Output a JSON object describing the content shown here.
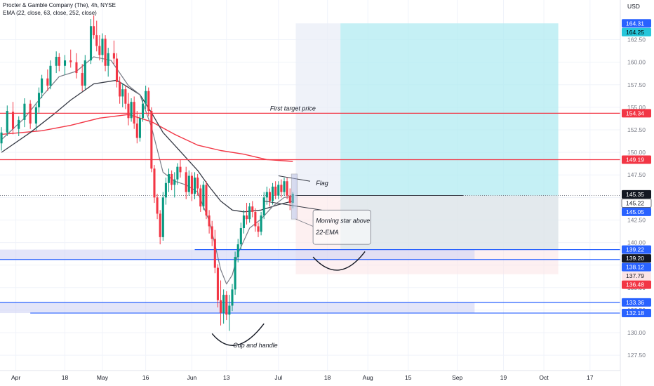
{
  "header": {
    "title": "Procter & Gamble Company (The), 4h, NYSE",
    "indicator": "EMA (22, close, 63, close, 252, close)"
  },
  "chart_data": {
    "type": "candlestick",
    "currency": "USD",
    "ylim": [
      125.8,
      166.9
    ],
    "y_ticks": [
      127.5,
      130.0,
      132.5,
      135.0,
      137.5,
      140.0,
      142.5,
      145.0,
      147.5,
      150.0,
      152.5,
      155.0,
      157.5,
      160.0,
      162.5
    ],
    "x_ticks": [
      {
        "label": "Apr",
        "day": 1
      },
      {
        "label": "18",
        "day": 18
      },
      {
        "label": "May",
        "day": 31
      },
      {
        "label": "16",
        "day": 46
      },
      {
        "label": "Jun",
        "day": 62
      },
      {
        "label": "13",
        "day": 74
      },
      {
        "label": "Jul",
        "day": 92
      },
      {
        "label": "18",
        "day": 109
      },
      {
        "label": "Aug",
        "day": 123
      },
      {
        "label": "15",
        "day": 137
      },
      {
        "label": "Sep",
        "day": 154
      },
      {
        "label": "19",
        "day": 170
      },
      {
        "label": "Oct",
        "day": 184
      },
      {
        "label": "17",
        "day": 200
      }
    ],
    "xlim": [
      -4.5,
      210.5
    ],
    "candles": [
      {
        "d": -4,
        "o": 151.0,
        "h": 152.8,
        "l": 150.2,
        "c": 152.2
      },
      {
        "d": -2,
        "o": 152.2,
        "h": 155.2,
        "l": 151.8,
        "c": 154.6
      },
      {
        "d": 0,
        "o": 154.5,
        "h": 155.6,
        "l": 152.0,
        "c": 152.6
      },
      {
        "d": 2,
        "o": 152.6,
        "h": 154.0,
        "l": 151.8,
        "c": 153.6
      },
      {
        "d": 4,
        "o": 153.6,
        "h": 156.0,
        "l": 152.8,
        "c": 155.4
      },
      {
        "d": 6,
        "o": 155.4,
        "h": 155.8,
        "l": 152.6,
        "c": 153.2
      },
      {
        "d": 8,
        "o": 153.2,
        "h": 155.5,
        "l": 152.4,
        "c": 155.0
      },
      {
        "d": 9,
        "o": 155.0,
        "h": 157.2,
        "l": 154.4,
        "c": 156.6
      },
      {
        "d": 10,
        "o": 156.6,
        "h": 158.6,
        "l": 156.0,
        "c": 158.2
      },
      {
        "d": 12,
        "o": 158.2,
        "h": 159.2,
        "l": 156.8,
        "c": 157.4
      },
      {
        "d": 13,
        "o": 157.4,
        "h": 160.2,
        "l": 157.0,
        "c": 159.6
      },
      {
        "d": 15,
        "o": 159.6,
        "h": 161.2,
        "l": 158.8,
        "c": 160.6
      },
      {
        "d": 16,
        "o": 160.6,
        "h": 161.0,
        "l": 159.0,
        "c": 159.6
      },
      {
        "d": 18,
        "o": 159.6,
        "h": 160.8,
        "l": 158.6,
        "c": 160.2
      },
      {
        "d": 20,
        "o": 160.2,
        "h": 161.4,
        "l": 159.4,
        "c": 160.0
      },
      {
        "d": 22,
        "o": 160.0,
        "h": 161.0,
        "l": 158.2,
        "c": 158.8
      },
      {
        "d": 24,
        "o": 158.8,
        "h": 159.8,
        "l": 156.8,
        "c": 157.4
      },
      {
        "d": 25,
        "o": 157.4,
        "h": 160.8,
        "l": 157.0,
        "c": 160.2
      },
      {
        "d": 27,
        "o": 160.2,
        "h": 164.8,
        "l": 159.8,
        "c": 164.0
      },
      {
        "d": 28,
        "o": 164.0,
        "h": 165.2,
        "l": 162.6,
        "c": 163.0
      },
      {
        "d": 29,
        "o": 163.0,
        "h": 164.6,
        "l": 161.2,
        "c": 161.8
      },
      {
        "d": 30,
        "o": 161.8,
        "h": 163.0,
        "l": 160.2,
        "c": 160.8
      },
      {
        "d": 31,
        "o": 160.8,
        "h": 163.2,
        "l": 160.0,
        "c": 162.6
      },
      {
        "d": 32,
        "o": 162.6,
        "h": 163.0,
        "l": 159.0,
        "c": 159.6
      },
      {
        "d": 33,
        "o": 159.6,
        "h": 161.6,
        "l": 158.4,
        "c": 161.0
      },
      {
        "d": 35,
        "o": 161.0,
        "h": 162.4,
        "l": 159.8,
        "c": 160.4
      },
      {
        "d": 36,
        "o": 160.4,
        "h": 161.0,
        "l": 157.2,
        "c": 157.8
      },
      {
        "d": 37,
        "o": 157.8,
        "h": 158.4,
        "l": 155.4,
        "c": 156.2
      },
      {
        "d": 38,
        "o": 156.2,
        "h": 157.6,
        "l": 155.0,
        "c": 157.0
      },
      {
        "d": 39,
        "o": 157.0,
        "h": 157.4,
        "l": 154.8,
        "c": 155.4
      },
      {
        "d": 40,
        "o": 155.4,
        "h": 156.6,
        "l": 153.0,
        "c": 153.8
      },
      {
        "d": 41,
        "o": 153.8,
        "h": 156.0,
        "l": 153.4,
        "c": 155.6
      },
      {
        "d": 42,
        "o": 155.6,
        "h": 156.2,
        "l": 152.6,
        "c": 153.2
      },
      {
        "d": 43,
        "o": 153.2,
        "h": 154.6,
        "l": 151.0,
        "c": 151.6
      },
      {
        "d": 44,
        "o": 151.6,
        "h": 154.2,
        "l": 151.2,
        "c": 153.8
      },
      {
        "d": 45,
        "o": 153.8,
        "h": 156.0,
        "l": 153.4,
        "c": 155.4
      },
      {
        "d": 46,
        "o": 155.4,
        "h": 157.4,
        "l": 154.8,
        "c": 156.8
      },
      {
        "d": 47,
        "o": 156.8,
        "h": 157.2,
        "l": 154.0,
        "c": 154.6
      },
      {
        "d": 48,
        "o": 154.6,
        "h": 155.0,
        "l": 147.8,
        "c": 148.2
      },
      {
        "d": 49,
        "o": 148.2,
        "h": 148.6,
        "l": 144.4,
        "c": 145.0
      },
      {
        "d": 50,
        "o": 145.0,
        "h": 145.4,
        "l": 142.6,
        "c": 143.2
      },
      {
        "d": 51,
        "o": 143.2,
        "h": 143.6,
        "l": 139.8,
        "c": 140.6
      },
      {
        "d": 52,
        "o": 140.6,
        "h": 145.6,
        "l": 140.2,
        "c": 145.0
      },
      {
        "d": 53,
        "o": 145.0,
        "h": 147.2,
        "l": 144.2,
        "c": 146.6
      },
      {
        "d": 54,
        "o": 146.6,
        "h": 148.2,
        "l": 145.6,
        "c": 147.6
      },
      {
        "d": 55,
        "o": 147.6,
        "h": 148.0,
        "l": 145.8,
        "c": 146.4
      },
      {
        "d": 56,
        "o": 146.4,
        "h": 147.8,
        "l": 145.0,
        "c": 147.0
      },
      {
        "d": 57,
        "o": 147.0,
        "h": 148.8,
        "l": 146.4,
        "c": 148.4
      },
      {
        "d": 58,
        "o": 148.4,
        "h": 149.2,
        "l": 147.2,
        "c": 147.8
      },
      {
        "d": 60,
        "o": 147.8,
        "h": 148.4,
        "l": 144.8,
        "c": 145.6
      },
      {
        "d": 61,
        "o": 145.6,
        "h": 148.0,
        "l": 145.2,
        "c": 147.4
      },
      {
        "d": 62,
        "o": 147.4,
        "h": 147.8,
        "l": 144.6,
        "c": 145.4
      },
      {
        "d": 63,
        "o": 145.4,
        "h": 147.8,
        "l": 144.8,
        "c": 147.2
      },
      {
        "d": 64,
        "o": 147.2,
        "h": 147.6,
        "l": 145.2,
        "c": 146.0
      },
      {
        "d": 65,
        "o": 146.0,
        "h": 146.4,
        "l": 143.4,
        "c": 144.0
      },
      {
        "d": 66,
        "o": 144.0,
        "h": 146.8,
        "l": 143.6,
        "c": 146.4
      },
      {
        "d": 67,
        "o": 146.4,
        "h": 146.8,
        "l": 142.6,
        "c": 143.0
      },
      {
        "d": 68,
        "o": 143.0,
        "h": 143.6,
        "l": 141.0,
        "c": 141.8
      },
      {
        "d": 69,
        "o": 141.8,
        "h": 142.4,
        "l": 139.6,
        "c": 140.4
      },
      {
        "d": 70,
        "o": 140.4,
        "h": 141.4,
        "l": 136.6,
        "c": 137.2
      },
      {
        "d": 71,
        "o": 137.2,
        "h": 137.6,
        "l": 132.8,
        "c": 133.6
      },
      {
        "d": 72,
        "o": 133.6,
        "h": 135.8,
        "l": 130.8,
        "c": 132.2
      },
      {
        "d": 73,
        "o": 132.2,
        "h": 134.8,
        "l": 131.0,
        "c": 134.2
      },
      {
        "d": 74,
        "o": 134.2,
        "h": 134.6,
        "l": 131.4,
        "c": 132.0
      },
      {
        "d": 75,
        "o": 132.0,
        "h": 134.2,
        "l": 130.2,
        "c": 133.0
      },
      {
        "d": 76,
        "o": 133.0,
        "h": 135.4,
        "l": 132.4,
        "c": 134.8
      },
      {
        "d": 77,
        "o": 134.8,
        "h": 139.0,
        "l": 134.2,
        "c": 138.4
      },
      {
        "d": 78,
        "o": 138.4,
        "h": 140.4,
        "l": 137.8,
        "c": 139.8
      },
      {
        "d": 79,
        "o": 139.8,
        "h": 142.2,
        "l": 139.2,
        "c": 141.6
      },
      {
        "d": 80,
        "o": 141.6,
        "h": 143.6,
        "l": 141.0,
        "c": 143.0
      },
      {
        "d": 81,
        "o": 143.0,
        "h": 144.4,
        "l": 142.0,
        "c": 142.6
      },
      {
        "d": 82,
        "o": 142.6,
        "h": 144.4,
        "l": 142.2,
        "c": 144.0
      },
      {
        "d": 83,
        "o": 144.0,
        "h": 144.6,
        "l": 142.8,
        "c": 143.4
      },
      {
        "d": 84,
        "o": 143.4,
        "h": 143.8,
        "l": 141.2,
        "c": 141.8
      },
      {
        "d": 85,
        "o": 141.8,
        "h": 142.2,
        "l": 140.6,
        "c": 141.2
      },
      {
        "d": 86,
        "o": 141.2,
        "h": 143.4,
        "l": 140.8,
        "c": 143.0
      },
      {
        "d": 87,
        "o": 143.0,
        "h": 145.6,
        "l": 142.6,
        "c": 145.0
      },
      {
        "d": 88,
        "o": 145.0,
        "h": 146.2,
        "l": 144.2,
        "c": 145.6
      },
      {
        "d": 89,
        "o": 145.6,
        "h": 146.0,
        "l": 144.0,
        "c": 144.6
      },
      {
        "d": 90,
        "o": 144.6,
        "h": 146.6,
        "l": 144.2,
        "c": 146.2
      },
      {
        "d": 91,
        "o": 146.2,
        "h": 146.8,
        "l": 144.8,
        "c": 145.2
      },
      {
        "d": 92,
        "o": 145.2,
        "h": 146.8,
        "l": 144.8,
        "c": 146.4
      },
      {
        "d": 93,
        "o": 146.4,
        "h": 147.0,
        "l": 145.0,
        "c": 145.6
      },
      {
        "d": 94,
        "o": 145.6,
        "h": 147.2,
        "l": 145.2,
        "c": 146.8
      },
      {
        "d": 95,
        "o": 146.8,
        "h": 147.2,
        "l": 144.8,
        "c": 145.2
      },
      {
        "d": 96,
        "o": 145.2,
        "h": 146.0,
        "l": 143.6,
        "c": 144.4
      },
      {
        "d": 97,
        "o": 144.4,
        "h": 145.6,
        "l": 143.8,
        "c": 145.4
      }
    ],
    "ema_22": [
      [
        -4,
        151.4
      ],
      [
        4,
        153.8
      ],
      [
        10,
        156.2
      ],
      [
        16,
        158.4
      ],
      [
        22,
        159.0
      ],
      [
        28,
        160.6
      ],
      [
        34,
        160.2
      ],
      [
        40,
        157.4
      ],
      [
        44,
        156.4
      ],
      [
        48,
        152.8
      ],
      [
        52,
        147.8
      ],
      [
        56,
        146.8
      ],
      [
        60,
        146.4
      ],
      [
        64,
        145.6
      ],
      [
        68,
        142.4
      ],
      [
        70,
        139.8
      ],
      [
        72,
        137.0
      ],
      [
        74,
        135.4
      ],
      [
        76,
        136.4
      ],
      [
        78,
        138.8
      ],
      [
        82,
        141.6
      ],
      [
        86,
        142.6
      ],
      [
        90,
        144.0
      ],
      [
        94,
        145.0
      ],
      [
        97,
        145.1
      ]
    ],
    "ema_63": [
      [
        -4,
        150.0
      ],
      [
        6,
        152.2
      ],
      [
        14,
        154.2
      ],
      [
        20,
        155.8
      ],
      [
        28,
        157.6
      ],
      [
        36,
        158.0
      ],
      [
        44,
        156.4
      ],
      [
        48,
        154.4
      ],
      [
        52,
        152.2
      ],
      [
        56,
        150.8
      ],
      [
        60,
        149.4
      ],
      [
        64,
        148.0
      ],
      [
        68,
        146.2
      ],
      [
        72,
        144.6
      ],
      [
        76,
        143.6
      ],
      [
        80,
        143.4
      ],
      [
        86,
        143.6
      ],
      [
        92,
        144.2
      ],
      [
        97,
        144.6
      ]
    ],
    "ema_252": [
      [
        -4,
        152.0
      ],
      [
        10,
        152.4
      ],
      [
        20,
        153.0
      ],
      [
        30,
        153.8
      ],
      [
        40,
        154.2
      ],
      [
        48,
        153.4
      ],
      [
        56,
        152.0
      ],
      [
        64,
        150.8
      ],
      [
        72,
        150.2
      ],
      [
        80,
        149.8
      ],
      [
        88,
        149.2
      ],
      [
        97,
        149.0
      ]
    ],
    "horizontal_levels": [
      {
        "price": 154.34,
        "color": "#f23645",
        "label": "154.34"
      },
      {
        "price": 149.19,
        "color": "#f23645",
        "label": "149.19"
      },
      {
        "price": 139.22,
        "color": "#2962ff",
        "label": "139.22"
      },
      {
        "price": 138.12,
        "color": "#2962ff",
        "label": "138.12"
      },
      {
        "price": 133.36,
        "color": "#2962ff",
        "label": "133.36"
      },
      {
        "price": 132.18,
        "color": "#2962ff",
        "label": "132.18"
      }
    ],
    "price_labels": [
      {
        "price": 164.31,
        "text": "164.31",
        "bg": "#2962ff",
        "fg": "#ffffff"
      },
      {
        "price": 164.25,
        "text": "164.25",
        "bg": "#26c6da",
        "fg": "#000000"
      },
      {
        "price": 154.34,
        "text": "154.34",
        "bg": "#f23645",
        "fg": "#ffffff"
      },
      {
        "price": 149.19,
        "text": "149.19",
        "bg": "#f23645",
        "fg": "#ffffff"
      },
      {
        "price": 145.35,
        "text": "145.35",
        "bg": "#131722",
        "fg": "#ffffff"
      },
      {
        "price": 145.22,
        "text": "145.22",
        "bg": "#ffffff",
        "fg": "#131722"
      },
      {
        "price": 145.05,
        "text": "145.05",
        "bg": "#2962ff",
        "fg": "#ffffff"
      },
      {
        "price": 139.22,
        "text": "139.22",
        "bg": "#2962ff",
        "fg": "#ffffff"
      },
      {
        "price": 139.2,
        "text": "139.20",
        "bg": "#131722",
        "fg": "#ffffff"
      },
      {
        "price": 138.12,
        "text": "138.12",
        "bg": "#2962ff",
        "fg": "#ffffff"
      },
      {
        "price": 137.79,
        "text": "137.79",
        "bg": "#fce4e6",
        "fg": "#131722"
      },
      {
        "price": 136.48,
        "text": "136.48",
        "bg": "#f23645",
        "fg": "#ffffff"
      },
      {
        "price": 133.36,
        "text": "133.36",
        "bg": "#2962ff",
        "fg": "#ffffff"
      },
      {
        "price": 132.18,
        "text": "132.18",
        "bg": "#2962ff",
        "fg": "#ffffff"
      }
    ],
    "annotations": {
      "first_target": "First target price",
      "flag": "Flag",
      "morning_star": [
        "Morning star above",
        "22-EMA"
      ],
      "cup_handle": "Cup and handle"
    },
    "colors": {
      "up": "#089981",
      "down": "#f23645",
      "ema_22": "#787b86",
      "ema_63": "#363a45",
      "ema_252": "#f23645",
      "target_zone": "#b2ebf2",
      "stop_zone": "#fce4e6",
      "support_zone": "#d1d4f5"
    }
  }
}
